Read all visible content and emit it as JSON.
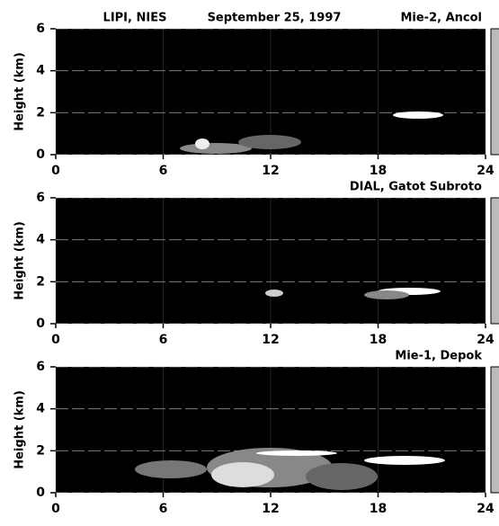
{
  "chart_data": [
    {
      "type": "heatmap",
      "annotations": [
        "LIPI, NIES",
        "September 25, 1997"
      ],
      "title": "Mie-2,  Ancol",
      "ylabel": "Height (km)",
      "xlim": [
        0,
        24
      ],
      "xticks": [
        0,
        6,
        12,
        18,
        24
      ],
      "ylim": [
        0,
        6
      ],
      "yticks": [
        0,
        2,
        4,
        6
      ],
      "grid": true
    },
    {
      "type": "heatmap",
      "title": "DIAL,  Gatot Subroto",
      "ylabel": "Height (km)",
      "xlim": [
        0,
        24
      ],
      "xticks": [
        0,
        6,
        12,
        18,
        24
      ],
      "ylim": [
        0,
        6
      ],
      "yticks": [
        0,
        2,
        4,
        6
      ],
      "grid": true
    },
    {
      "type": "heatmap",
      "title": "Mie-1,  Depok",
      "ylabel": "Height (km)",
      "xlim": [
        0,
        24
      ],
      "xticks": [
        0,
        6,
        12,
        18,
        24
      ],
      "ylim": [
        0,
        6
      ],
      "yticks": [
        0,
        2,
        4,
        6
      ],
      "grid": true
    }
  ]
}
